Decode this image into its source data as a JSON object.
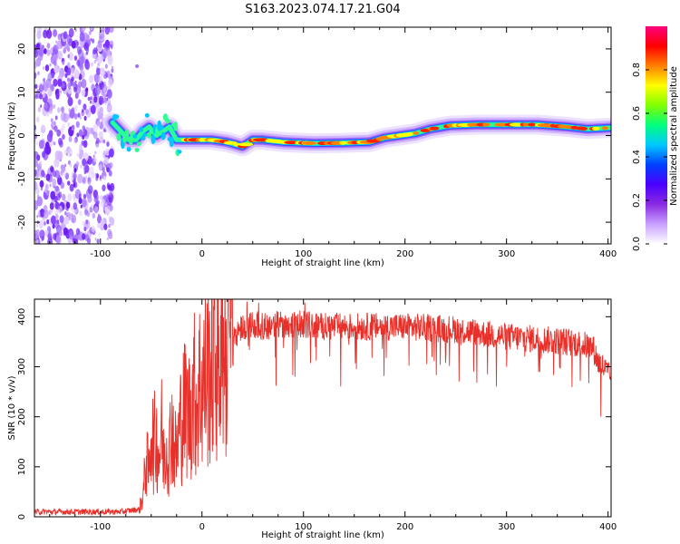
{
  "figure_title": "S163.2023.074.17.21.G04",
  "chart_data": [
    {
      "type": "heatmap",
      "title": "S163.2023.074.17.21.G04",
      "xlabel": "Height of straight line (km)",
      "ylabel": "Frequency (Hz)",
      "xlim": [
        -165,
        403
      ],
      "ylim": [
        -25,
        25
      ],
      "xticks": [
        -100,
        0,
        100,
        200,
        300,
        400
      ],
      "yticks": [
        -20,
        -10,
        0,
        10,
        20
      ],
      "colorbar": {
        "label": "Normalized spectral amplitude",
        "range": [
          0,
          1
        ],
        "ticks": [
          0.0,
          0.2,
          0.4,
          0.6,
          0.8
        ],
        "colormap": [
          "#ffffff",
          "#c9a0ff",
          "#8a2be2",
          "#4b00ff",
          "#0040ff",
          "#00c8ff",
          "#00ff80",
          "#80ff00",
          "#ffff00",
          "#ff8000",
          "#ff0000",
          "#ff0080"
        ]
      },
      "noise_region_x": [
        -165,
        -88
      ],
      "ridge": [
        {
          "x": -88,
          "y": 3
        },
        {
          "x": -80,
          "y": 1
        },
        {
          "x": -72,
          "y": -1
        },
        {
          "x": -65,
          "y": -1
        },
        {
          "x": -58,
          "y": 1
        },
        {
          "x": -52,
          "y": 2
        },
        {
          "x": -45,
          "y": 0
        },
        {
          "x": -38,
          "y": 1
        },
        {
          "x": -32,
          "y": 2
        },
        {
          "x": -25,
          "y": -1
        },
        {
          "x": -10,
          "y": -1
        },
        {
          "x": 10,
          "y": -1
        },
        {
          "x": 25,
          "y": -1.5
        },
        {
          "x": 40,
          "y": -2.5
        },
        {
          "x": 50,
          "y": -1
        },
        {
          "x": 60,
          "y": -1
        },
        {
          "x": 80,
          "y": -1.5
        },
        {
          "x": 110,
          "y": -1.8
        },
        {
          "x": 140,
          "y": -1.7
        },
        {
          "x": 165,
          "y": -1.5
        },
        {
          "x": 180,
          "y": -0.5
        },
        {
          "x": 195,
          "y": 0
        },
        {
          "x": 210,
          "y": 0.5
        },
        {
          "x": 225,
          "y": 1.5
        },
        {
          "x": 245,
          "y": 2.3
        },
        {
          "x": 270,
          "y": 2.5
        },
        {
          "x": 300,
          "y": 2.5
        },
        {
          "x": 330,
          "y": 2.5
        },
        {
          "x": 360,
          "y": 2
        },
        {
          "x": 380,
          "y": 1.5
        },
        {
          "x": 403,
          "y": 1.8
        }
      ]
    },
    {
      "type": "line",
      "xlabel": "Height of straight line (km)",
      "ylabel": "SNR (10 * v/v)",
      "xlim": [
        -165,
        403
      ],
      "ylim": [
        0,
        435
      ],
      "xticks": [
        -100,
        0,
        100,
        200,
        300,
        400
      ],
      "yticks": [
        0,
        100,
        200,
        300,
        400
      ],
      "color": "#e8302a",
      "series": [
        {
          "name": "SNR",
          "x": [
            -165,
            -120,
            -80,
            -62,
            -58,
            -55,
            -52,
            -50,
            -48,
            -45,
            -42,
            -40,
            -38,
            -35,
            -32,
            -30,
            -28,
            -25,
            -22,
            -20,
            -18,
            -15,
            -12,
            -10,
            -8,
            -5,
            -2,
            0,
            5,
            10,
            15,
            20,
            25,
            30,
            40,
            50,
            60,
            80,
            100,
            120,
            150,
            200,
            250,
            280,
            300,
            330,
            360,
            385,
            390,
            395,
            400,
            403
          ],
          "y": [
            10,
            10,
            10,
            15,
            40,
            120,
            80,
            200,
            140,
            160,
            120,
            180,
            110,
            150,
            130,
            200,
            150,
            120,
            180,
            200,
            210,
            220,
            200,
            240,
            250,
            230,
            270,
            260,
            290,
            310,
            320,
            340,
            350,
            360,
            380,
            385,
            380,
            385,
            385,
            380,
            380,
            380,
            375,
            365,
            360,
            355,
            350,
            340,
            310,
            300,
            285,
            275
          ]
        }
      ]
    }
  ]
}
